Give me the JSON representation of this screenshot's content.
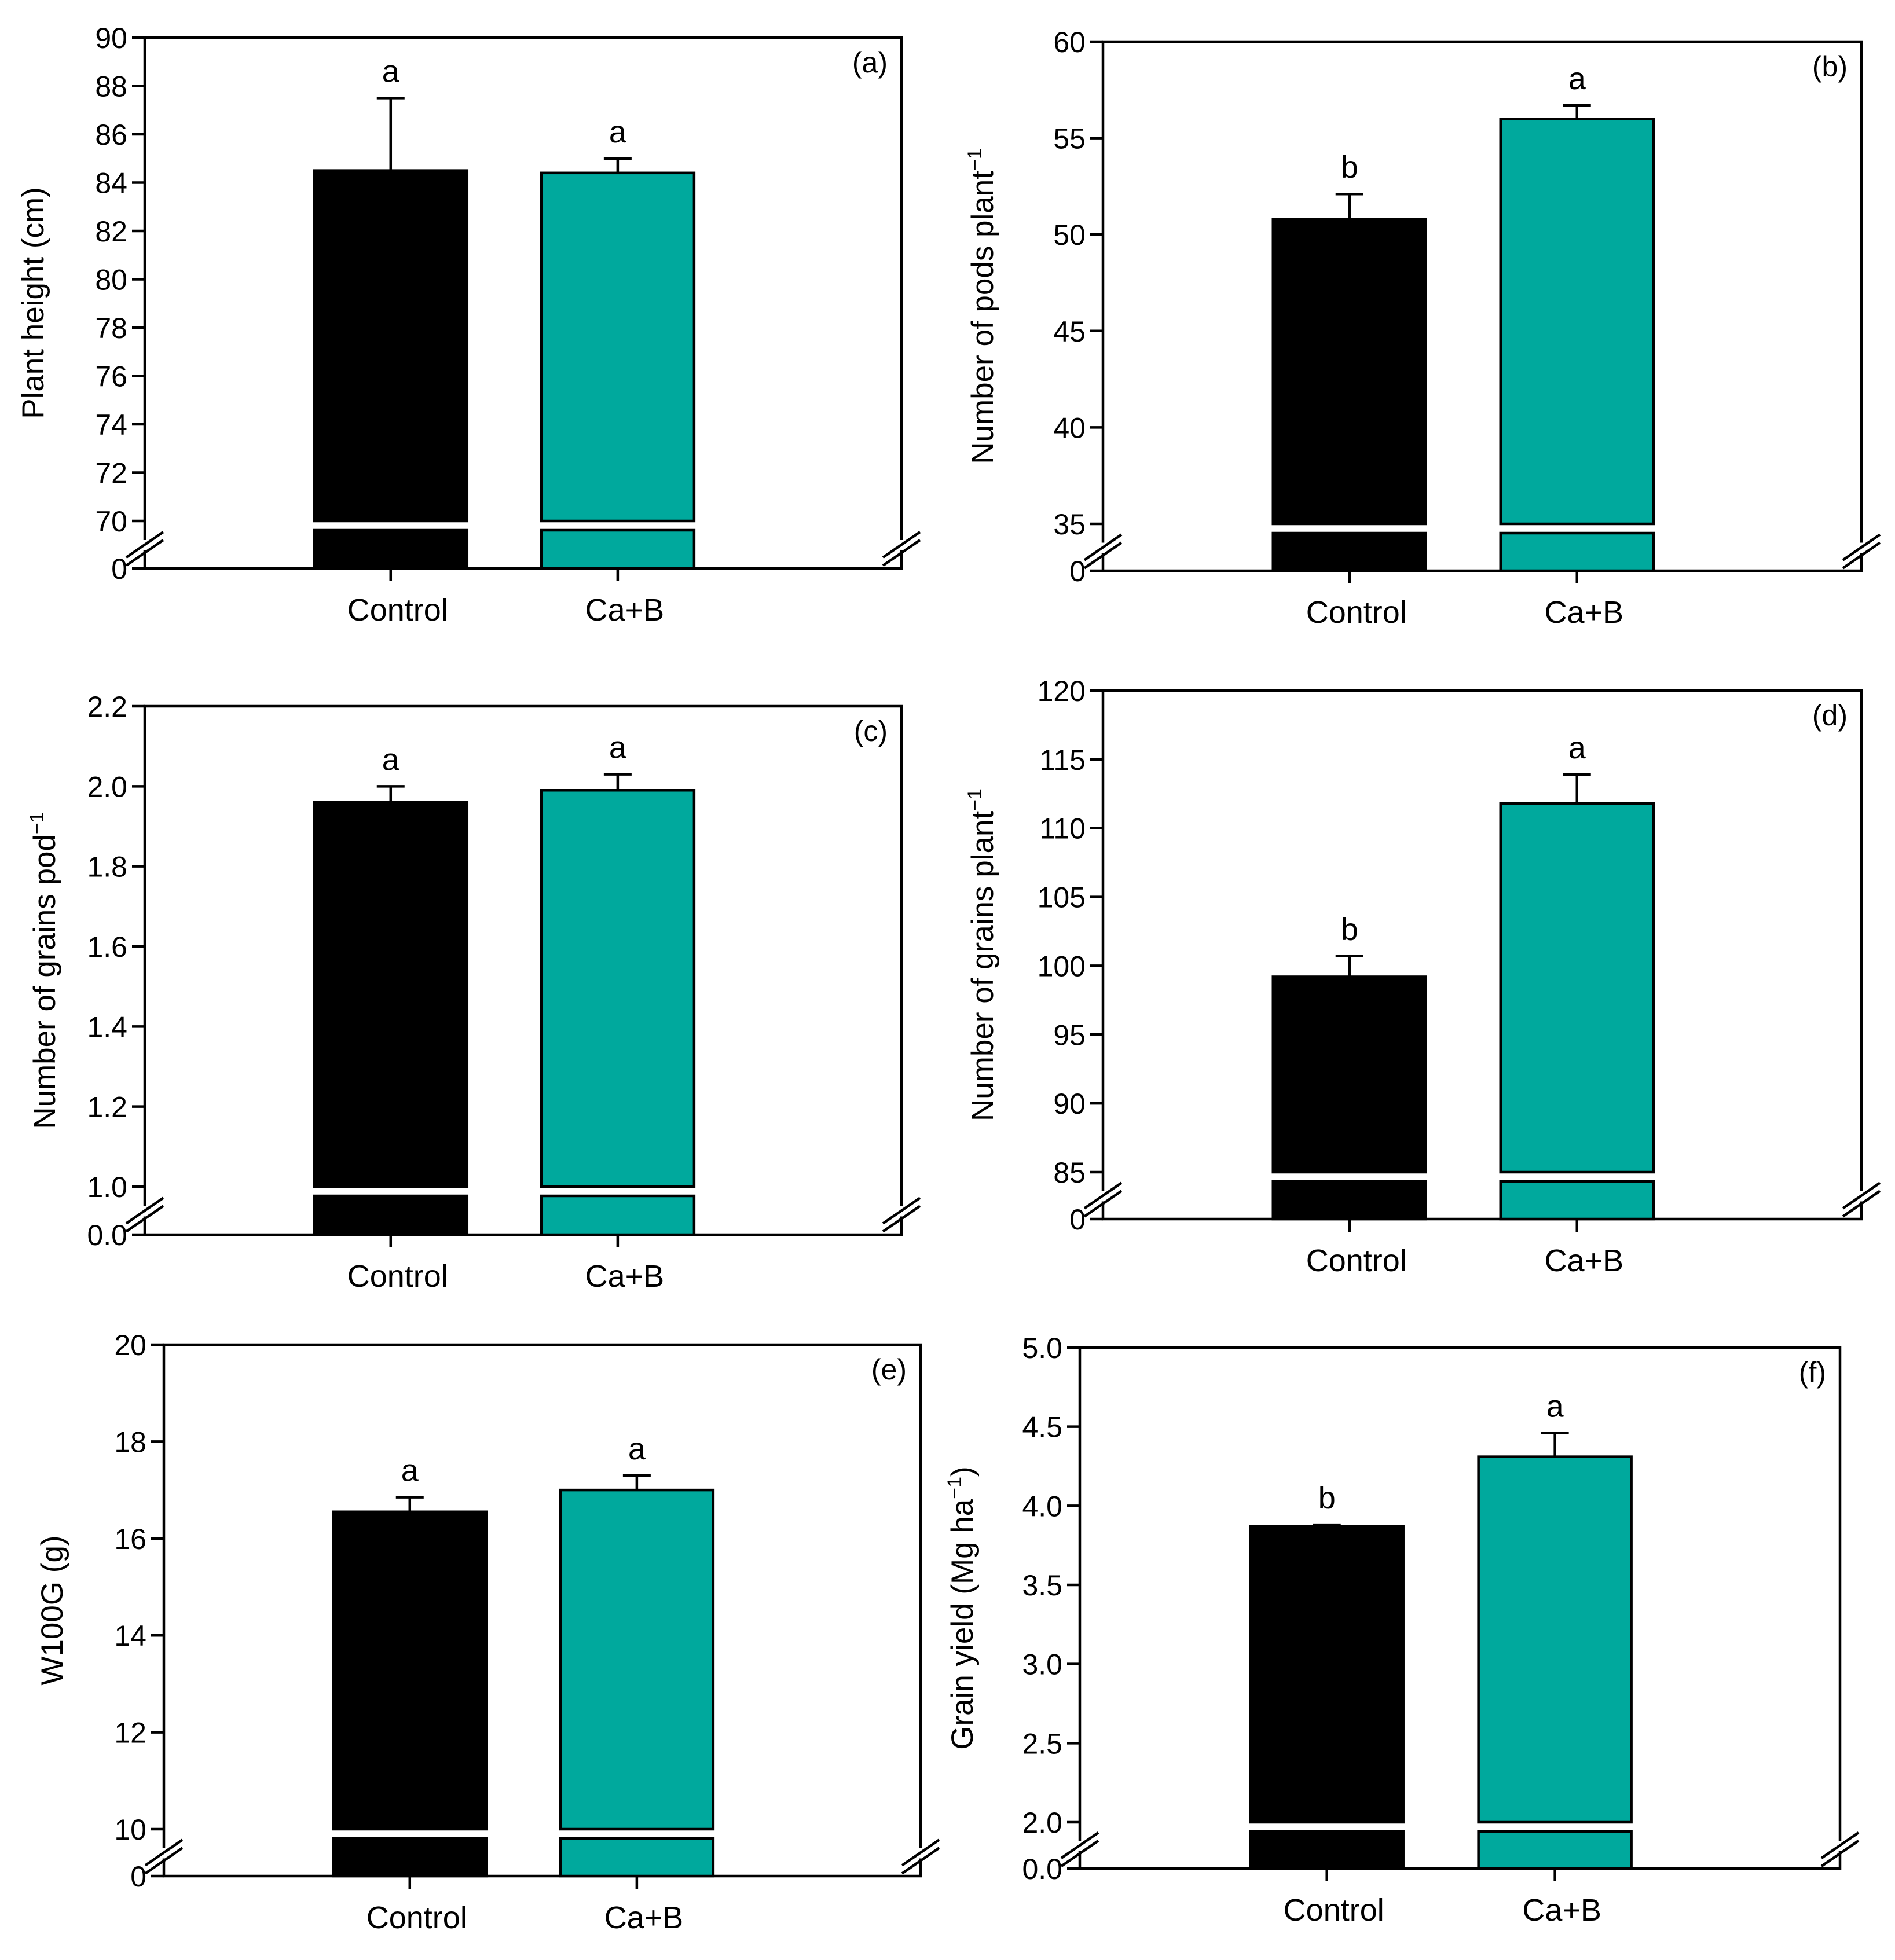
{
  "colors": {
    "control": "#000000",
    "cab": "#00a99d",
    "break_gap": "#ffffff"
  },
  "chart_data": [
    {
      "type": "bar",
      "panel_label": "(a)",
      "categories": [
        "Control",
        "Ca+B"
      ],
      "values": [
        84.5,
        84.4
      ],
      "errors": [
        3.0,
        0.6
      ],
      "letters": [
        "a",
        "a"
      ],
      "ylabel": "Plant height (cm)",
      "ylabel_sup": "",
      "ylim": [
        70,
        90
      ],
      "yticks": [
        "70",
        "72",
        "74",
        "76",
        "78",
        "80",
        "82",
        "84",
        "86",
        "88",
        "90"
      ],
      "axis_break": true,
      "baseline_label": "0",
      "grid": false
    },
    {
      "type": "bar",
      "panel_label": "(b)",
      "categories": [
        "Control",
        "Ca+B"
      ],
      "values": [
        50.8,
        56.0
      ],
      "errors": [
        1.3,
        0.7
      ],
      "letters": [
        "b",
        "a"
      ],
      "ylabel": "Number of pods plant",
      "ylabel_sup": "−1",
      "ylim": [
        35,
        60
      ],
      "yticks": [
        "35",
        "40",
        "45",
        "50",
        "55",
        "60"
      ],
      "axis_break": true,
      "baseline_label": "0",
      "grid": false
    },
    {
      "type": "bar",
      "panel_label": "(c)",
      "categories": [
        "Control",
        "Ca+B"
      ],
      "values": [
        1.96,
        1.99
      ],
      "errors": [
        0.04,
        0.04
      ],
      "letters": [
        "a",
        "a"
      ],
      "ylabel": "Number of grains pod",
      "ylabel_sup": "−1",
      "ylim": [
        1.0,
        2.2
      ],
      "yticks": [
        "1.0",
        "1.2",
        "1.4",
        "1.6",
        "1.8",
        "2.0",
        "2.2"
      ],
      "axis_break": true,
      "baseline_label": "0.0",
      "grid": false
    },
    {
      "type": "bar",
      "panel_label": "(d)",
      "categories": [
        "Control",
        "Ca+B"
      ],
      "values": [
        99.2,
        111.8
      ],
      "errors": [
        1.5,
        2.1
      ],
      "letters": [
        "b",
        "a"
      ],
      "ylabel": "Number of grains plant",
      "ylabel_sup": "−1",
      "ylim": [
        85,
        120
      ],
      "yticks": [
        "85",
        "90",
        "95",
        "100",
        "105",
        "110",
        "115",
        "120"
      ],
      "axis_break": true,
      "baseline_label": "0",
      "grid": false
    },
    {
      "type": "bar",
      "panel_label": "(e)",
      "categories": [
        "Control",
        "Ca+B"
      ],
      "values": [
        16.55,
        17.0
      ],
      "errors": [
        0.3,
        0.3
      ],
      "letters": [
        "a",
        "a"
      ],
      "ylabel": "W100G (g)",
      "ylabel_sup": "",
      "ylim": [
        10,
        20
      ],
      "yticks": [
        "10",
        "12",
        "14",
        "16",
        "18",
        "20"
      ],
      "axis_break": true,
      "baseline_label": "0",
      "grid": false
    },
    {
      "type": "bar",
      "panel_label": "(f)",
      "categories": [
        "Control",
        "Ca+B"
      ],
      "values": [
        3.87,
        4.31
      ],
      "errors": [
        0.01,
        0.15
      ],
      "letters": [
        "b",
        "a"
      ],
      "ylabel": "Grain yield (Mg ha",
      "ylabel_sup": "−1",
      "ylabel_after": ")",
      "ylim": [
        2.0,
        5.0
      ],
      "yticks": [
        "2.0",
        "2.5",
        "3.0",
        "3.5",
        "4.0",
        "4.5",
        "5.0"
      ],
      "axis_break": true,
      "baseline_label": "0.0",
      "grid": false
    }
  ]
}
